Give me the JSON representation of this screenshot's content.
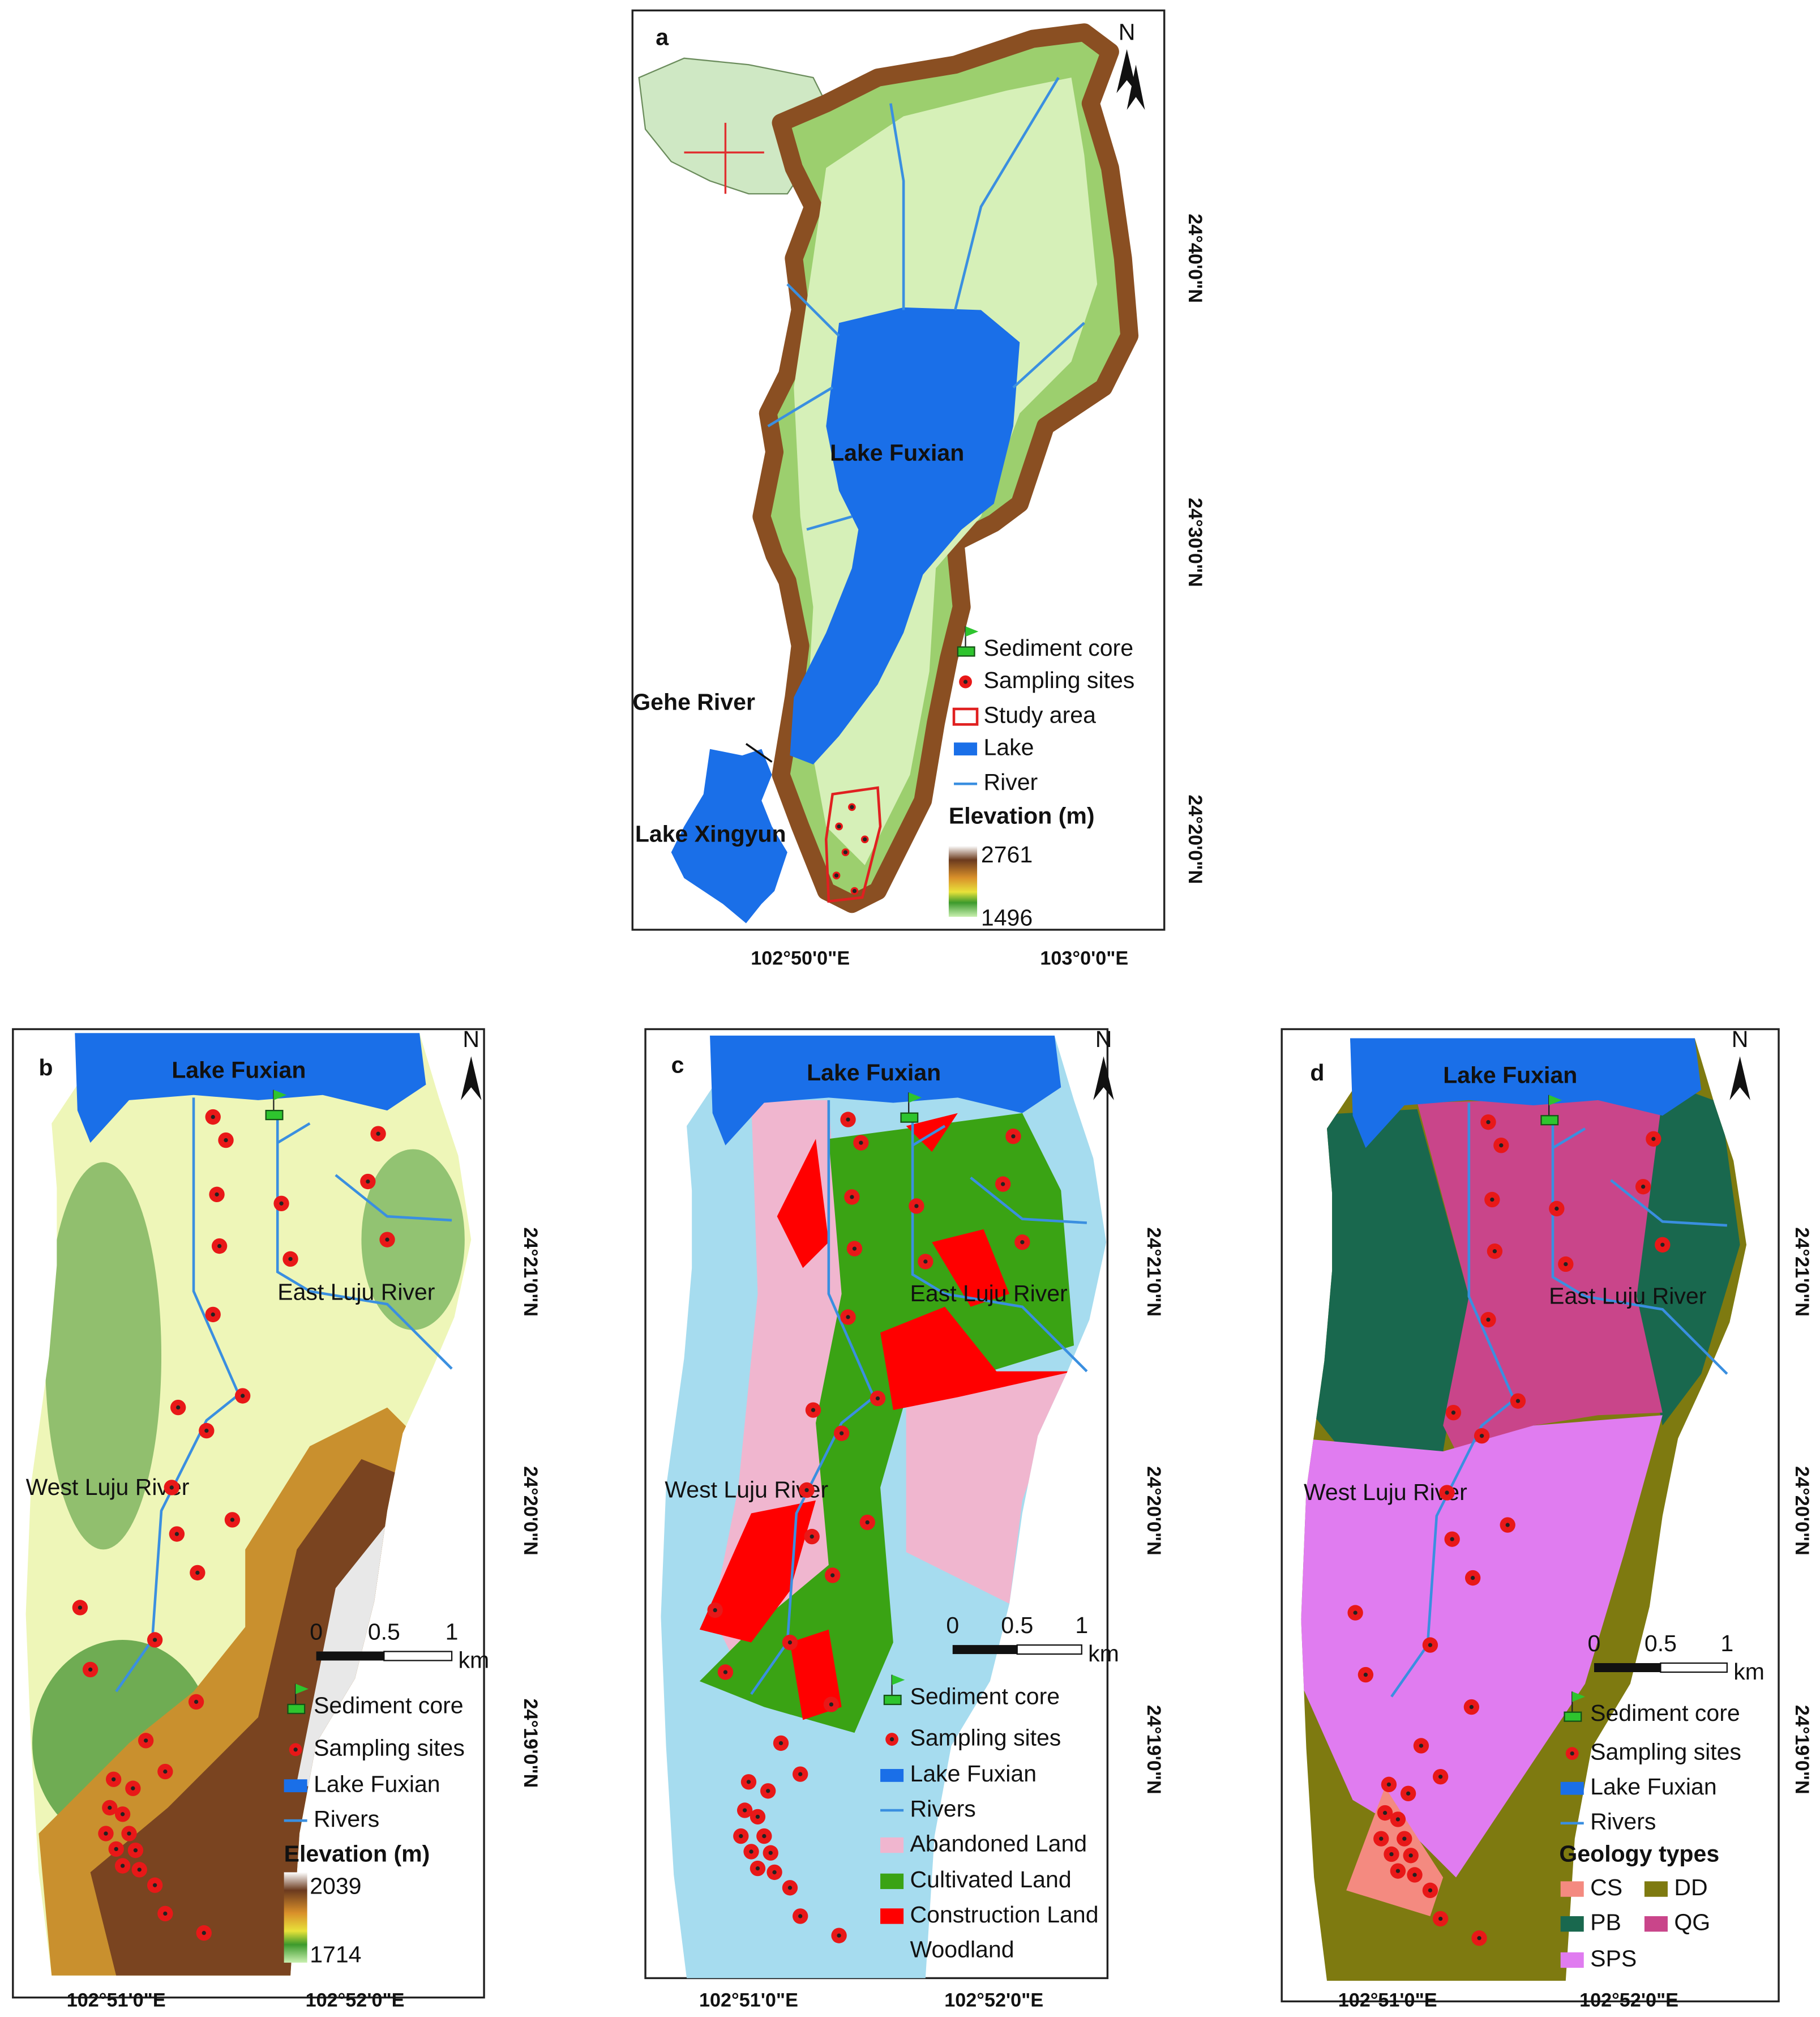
{
  "panels": [
    {
      "label": "a",
      "north": "N",
      "places": [
        "Lake Fuxian",
        "Gehe River",
        "Lake Xingyun"
      ],
      "latitudes": [
        "24°40'0\"N",
        "24°30'0\"N",
        "24°20'0\"N"
      ],
      "longitudes": [
        "102°50'0\"E",
        "103°0'0\"E"
      ],
      "legend": [
        "Sediment core",
        "Sampling sites",
        "Study area",
        "Lake",
        "River"
      ],
      "legend_title": "Elevation (m)",
      "elevation_range": [
        2761,
        1496
      ]
    },
    {
      "label": "b",
      "north": "N",
      "places": [
        "Lake Fuxian",
        "East Luju River",
        "West Luju River"
      ],
      "latitudes": [
        "24°21'0\"N",
        "24°20'0\"N",
        "24°19'0\"N"
      ],
      "longitudes": [
        "102°51'0\"E",
        "102°52'0\"E"
      ],
      "scale_bar": {
        "ticks": [
          0,
          0.5,
          1
        ],
        "unit": "km"
      },
      "legend": [
        "Sediment core",
        "Sampling sites",
        "Lake Fuxian",
        "Rivers"
      ],
      "legend_title": "Elevation (m)",
      "elevation_range": [
        2039,
        1714
      ]
    },
    {
      "label": "c",
      "north": "N",
      "places": [
        "Lake Fuxian",
        "East Luju River",
        "West Luju River"
      ],
      "latitudes": [
        "24°21'0\"N",
        "24°20'0\"N",
        "24°19'0\"N"
      ],
      "longitudes": [
        "102°51'0\"E",
        "102°52'0\"E"
      ],
      "scale_bar": {
        "ticks": [
          0,
          0.5,
          1
        ],
        "unit": "km"
      },
      "legend": [
        "Sediment core",
        "Sampling sites",
        "Lake Fuxian",
        "Rivers",
        "Abandoned Land",
        "Cultivated Land",
        "Construction Land",
        "Woodland"
      ]
    },
    {
      "label": "d",
      "north": "N",
      "places": [
        "Lake Fuxian",
        "East Luju River",
        "West Luju River"
      ],
      "latitudes": [
        "24°21'0\"N",
        "24°20'0\"N",
        "24°19'0\"N"
      ],
      "longitudes": [
        "102°51'0\"E",
        "102°52'0\"E"
      ],
      "scale_bar": {
        "ticks": [
          0,
          0.5,
          1
        ],
        "unit": "km"
      },
      "legend": [
        "Sediment core",
        "Sampling sites",
        "Lake Fuxian",
        "Rivers"
      ],
      "legend_title": "Geology types",
      "geology": [
        "CS",
        "DD",
        "PB",
        "QG",
        "SPS"
      ]
    }
  ]
}
